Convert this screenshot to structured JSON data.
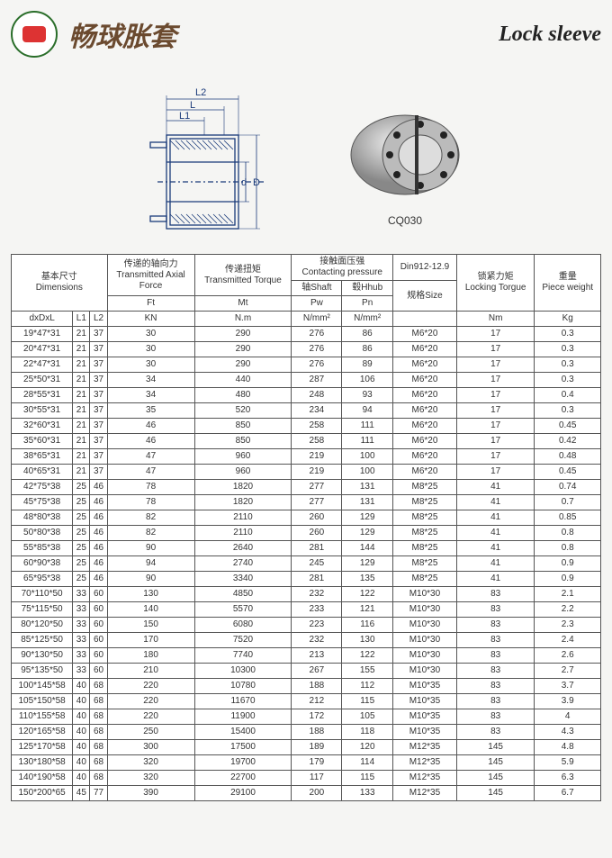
{
  "header": {
    "brand_cn": "畅球胀套",
    "brand_en": "Lock sleeve"
  },
  "figure": {
    "diagram_labels": {
      "L2": "L2",
      "L": "L",
      "L1": "L1",
      "d": "d",
      "D": "D"
    },
    "photo_caption": "CQ030"
  },
  "colors": {
    "page_bg": "#f5f5f3",
    "border": "#555555",
    "text": "#333333",
    "brand_cn": "#6b4a2f",
    "brand_en": "#222222",
    "diagram_line": "#1a3a7a"
  },
  "table": {
    "headers": {
      "dims_cn": "基本尺寸",
      "dims_en": "Dimensions",
      "force_cn": "传递的轴向力",
      "force_en1": "Transmitted Axial",
      "force_en2": "Force",
      "force_unit_label": "Ft",
      "force_unit": "KN",
      "torque_cn": "传递扭矩",
      "torque_en1": "Transmitted Torque",
      "torque_unit_label": "Mt",
      "torque_unit": "N.m",
      "contact_cn": "接触面压强",
      "contact_en": "Contacting pressure",
      "shaft_cn": "轴Shaft",
      "shaft_unit_label": "Pw",
      "shaft_unit": "N/mm²",
      "hub_cn": "毂Hhub",
      "hub_unit_label": "Pn",
      "hub_unit": "N/mm²",
      "din": "Din912-12.9",
      "size_cn": "规格Size",
      "lock_cn": "锁紧力矩",
      "lock_en": "Locking Torgue",
      "lock_unit": "Nm",
      "weight_cn": "重量",
      "weight_en": "Piece weight",
      "weight_unit": "Kg",
      "dxdxl": "dxDxL",
      "l1": "L1",
      "l2": "L2"
    },
    "rows": [
      [
        "19*47*31",
        "21",
        "37",
        "30",
        "290",
        "276",
        "86",
        "M6*20",
        "17",
        "0.3"
      ],
      [
        "20*47*31",
        "21",
        "37",
        "30",
        "290",
        "276",
        "86",
        "M6*20",
        "17",
        "0.3"
      ],
      [
        "22*47*31",
        "21",
        "37",
        "30",
        "290",
        "276",
        "89",
        "M6*20",
        "17",
        "0.3"
      ],
      [
        "25*50*31",
        "21",
        "37",
        "34",
        "440",
        "287",
        "106",
        "M6*20",
        "17",
        "0.3"
      ],
      [
        "28*55*31",
        "21",
        "37",
        "34",
        "480",
        "248",
        "93",
        "M6*20",
        "17",
        "0.4"
      ],
      [
        "30*55*31",
        "21",
        "37",
        "35",
        "520",
        "234",
        "94",
        "M6*20",
        "17",
        "0.3"
      ],
      [
        "32*60*31",
        "21",
        "37",
        "46",
        "850",
        "258",
        "111",
        "M6*20",
        "17",
        "0.45"
      ],
      [
        "35*60*31",
        "21",
        "37",
        "46",
        "850",
        "258",
        "111",
        "M6*20",
        "17",
        "0.42"
      ],
      [
        "38*65*31",
        "21",
        "37",
        "47",
        "960",
        "219",
        "100",
        "M6*20",
        "17",
        "0.48"
      ],
      [
        "40*65*31",
        "21",
        "37",
        "47",
        "960",
        "219",
        "100",
        "M6*20",
        "17",
        "0.45"
      ],
      [
        "42*75*38",
        "25",
        "46",
        "78",
        "1820",
        "277",
        "131",
        "M8*25",
        "41",
        "0.74"
      ],
      [
        "45*75*38",
        "25",
        "46",
        "78",
        "1820",
        "277",
        "131",
        "M8*25",
        "41",
        "0.7"
      ],
      [
        "48*80*38",
        "25",
        "46",
        "82",
        "2110",
        "260",
        "129",
        "M8*25",
        "41",
        "0.85"
      ],
      [
        "50*80*38",
        "25",
        "46",
        "82",
        "2110",
        "260",
        "129",
        "M8*25",
        "41",
        "0.8"
      ],
      [
        "55*85*38",
        "25",
        "46",
        "90",
        "2640",
        "281",
        "144",
        "M8*25",
        "41",
        "0.8"
      ],
      [
        "60*90*38",
        "25",
        "46",
        "94",
        "2740",
        "245",
        "129",
        "M8*25",
        "41",
        "0.9"
      ],
      [
        "65*95*38",
        "25",
        "46",
        "90",
        "3340",
        "281",
        "135",
        "M8*25",
        "41",
        "0.9"
      ],
      [
        "70*110*50",
        "33",
        "60",
        "130",
        "4850",
        "232",
        "122",
        "M10*30",
        "83",
        "2.1"
      ],
      [
        "75*115*50",
        "33",
        "60",
        "140",
        "5570",
        "233",
        "121",
        "M10*30",
        "83",
        "2.2"
      ],
      [
        "80*120*50",
        "33",
        "60",
        "150",
        "6080",
        "223",
        "116",
        "M10*30",
        "83",
        "2.3"
      ],
      [
        "85*125*50",
        "33",
        "60",
        "170",
        "7520",
        "232",
        "130",
        "M10*30",
        "83",
        "2.4"
      ],
      [
        "90*130*50",
        "33",
        "60",
        "180",
        "7740",
        "213",
        "122",
        "M10*30",
        "83",
        "2.6"
      ],
      [
        "95*135*50",
        "33",
        "60",
        "210",
        "10300",
        "267",
        "155",
        "M10*30",
        "83",
        "2.7"
      ],
      [
        "100*145*58",
        "40",
        "68",
        "220",
        "10780",
        "188",
        "112",
        "M10*35",
        "83",
        "3.7"
      ],
      [
        "105*150*58",
        "40",
        "68",
        "220",
        "11670",
        "212",
        "115",
        "M10*35",
        "83",
        "3.9"
      ],
      [
        "110*155*58",
        "40",
        "68",
        "220",
        "11900",
        "172",
        "105",
        "M10*35",
        "83",
        "4"
      ],
      [
        "120*165*58",
        "40",
        "68",
        "250",
        "15400",
        "188",
        "118",
        "M10*35",
        "83",
        "4.3"
      ],
      [
        "125*170*58",
        "40",
        "68",
        "300",
        "17500",
        "189",
        "120",
        "M12*35",
        "145",
        "4.8"
      ],
      [
        "130*180*58",
        "40",
        "68",
        "320",
        "19700",
        "179",
        "114",
        "M12*35",
        "145",
        "5.9"
      ],
      [
        "140*190*58",
        "40",
        "68",
        "320",
        "22700",
        "117",
        "115",
        "M12*35",
        "145",
        "6.3"
      ],
      [
        "150*200*65",
        "45",
        "77",
        "390",
        "29100",
        "200",
        "133",
        "M12*35",
        "145",
        "6.7"
      ]
    ]
  }
}
